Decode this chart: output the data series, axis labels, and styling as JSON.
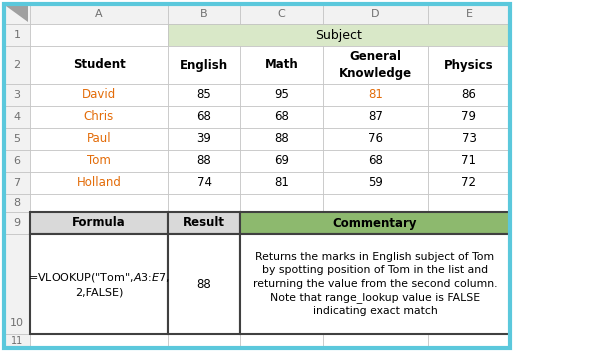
{
  "figsize": [
    6.09,
    3.56
  ],
  "dpi": 100,
  "bg_white": "#ffffff",
  "bg_green_light": "#d9e8c8",
  "bg_gray_header": "#d9d9d9",
  "outer_border_color": "#5bc8dc",
  "cell_border_color": "#c0c0c0",
  "row_num_color": "#707070",
  "col_letter_color": "#707070",
  "name_color": "#e36c09",
  "d3_color": "#e36c09",
  "commentary_green": "#8db96e",
  "data_rows": [
    [
      "David",
      "85",
      "95",
      "81",
      "86"
    ],
    [
      "Chris",
      "68",
      "68",
      "87",
      "79"
    ],
    [
      "Paul",
      "39",
      "88",
      "76",
      "73"
    ],
    [
      "Tom",
      "88",
      "69",
      "68",
      "71"
    ],
    [
      "Holland",
      "74",
      "81",
      "59",
      "72"
    ]
  ],
  "formula_text": "=VLOOKUP(\"Tom\",$A$3:$E$7,\n2,FALSE)",
  "result_text": "88",
  "commentary_text": "Returns the marks in English subject of Tom\nby spotting position of Tom in the list and\nreturning the value from the second column.\nNote that range_lookup value is FALSE\nindicating exact match"
}
